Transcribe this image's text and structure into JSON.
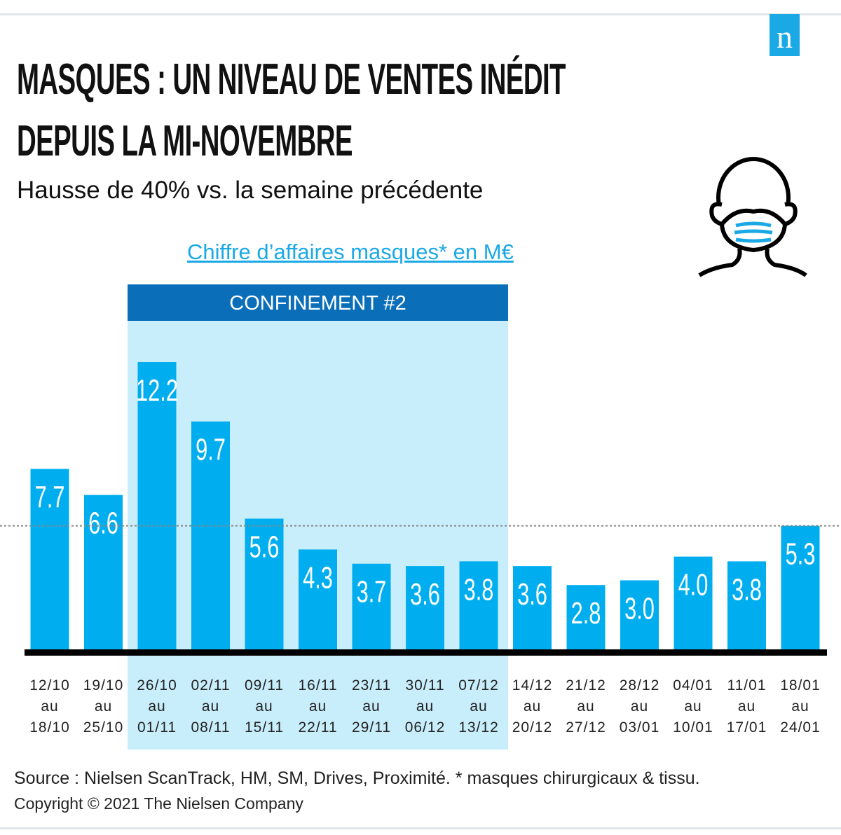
{
  "logo": {
    "text": "n",
    "color": "#1ba9e6"
  },
  "header": {
    "title_line1": "MASQUES : UN NIVEAU DE VENTES INÉDIT",
    "title_line2": "DEPUIS LA MI-NOVEMBRE",
    "subtitle": "Hausse de 40% vs. la semaine  précédente"
  },
  "icon": "face-mask-icon",
  "chart_data": {
    "type": "bar",
    "title": "Chiffre  d’affaires  masques*  en M€",
    "categories": [
      [
        "12/10",
        "au",
        "18/10"
      ],
      [
        "19/10",
        "au",
        "25/10"
      ],
      [
        "26/10",
        "au",
        "01/11"
      ],
      [
        "02/11",
        "au",
        "08/11"
      ],
      [
        "09/11",
        "au",
        "15/11"
      ],
      [
        "16/11",
        "au",
        "22/11"
      ],
      [
        "23/11",
        "au",
        "29/11"
      ],
      [
        "30/11",
        "au",
        "06/12"
      ],
      [
        "07/12",
        "au",
        "13/12"
      ],
      [
        "14/12",
        "au",
        "20/12"
      ],
      [
        "21/12",
        "au",
        "27/12"
      ],
      [
        "28/12",
        "au",
        "03/01"
      ],
      [
        "04/01",
        "au",
        "10/01"
      ],
      [
        "11/01",
        "au",
        "17/01"
      ],
      [
        "18/01",
        "au",
        "24/01"
      ]
    ],
    "values": [
      7.7,
      6.6,
      12.2,
      9.7,
      5.6,
      4.3,
      3.7,
      3.6,
      3.8,
      3.6,
      2.8,
      3.0,
      4.0,
      3.8,
      5.3
    ],
    "labels": [
      "7.7",
      "6.6",
      "12.2",
      "9.7",
      "5.6",
      "4.3",
      "3.7",
      "3.6",
      "3.8",
      "3.6",
      "2.8",
      "3.0",
      "4.0",
      "3.8",
      "5.3"
    ],
    "reference_line": 5.3,
    "highlight": {
      "label": "CONFINEMENT #2",
      "from_index": 2,
      "to_index": 8
    },
    "ylim": [
      0,
      12.2
    ],
    "grid": false,
    "colors": {
      "bar": "#00aeef",
      "highlight_bg": "#c8edfb",
      "highlight_header": "#0a6eb8"
    }
  },
  "footer": {
    "source": "Source : Nielsen  ScanTrack, HM, SM, Drives, Proximité. * masques chirurgicaux  & tissu.",
    "copyright": "Copyright  © 2021 The Nielsen  Company"
  }
}
